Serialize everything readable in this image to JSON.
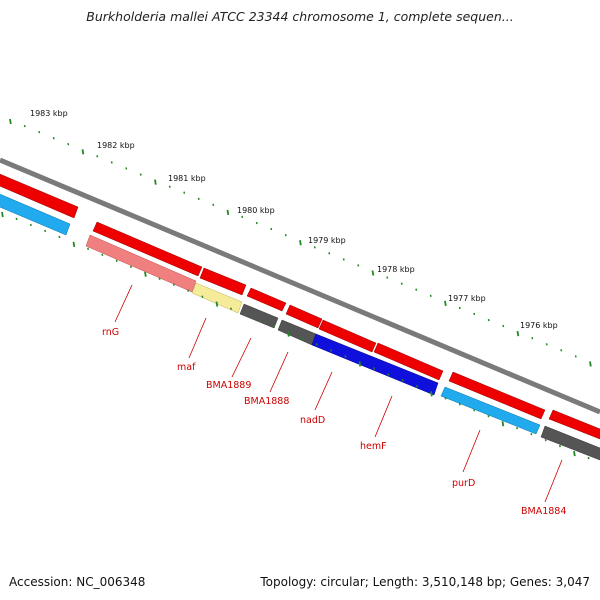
{
  "map": {
    "title": "Burkholderia mallei ATCC 23344 chromosome 1, complete sequen...",
    "scale_labels": [
      "1983 kbp",
      "1982 kbp",
      "1981 kbp",
      "1980 kbp",
      "1979 kbp",
      "1978 kbp",
      "1977 kbp",
      "1976 kbp"
    ],
    "gene_labels": [
      "rnG",
      "maf",
      "BMA1889",
      "BMA1888",
      "nadD",
      "hemF",
      "purD",
      "BMA1884"
    ],
    "colors": {
      "backbone": "#7a7a7a",
      "forward_gene": "#ee0000",
      "rna": "#f08080",
      "yellow": "#f5ec9a",
      "gray_gene": "#555555",
      "blue_gene": "#1010dd",
      "cyan_gene": "#22aaee",
      "tick": "#228822",
      "label": "#cc0000"
    }
  },
  "footer": {
    "accession": "Accession: NC_006348",
    "summary": "Topology: circular; Length: 3,510,148 bp; Genes: 3,047"
  }
}
